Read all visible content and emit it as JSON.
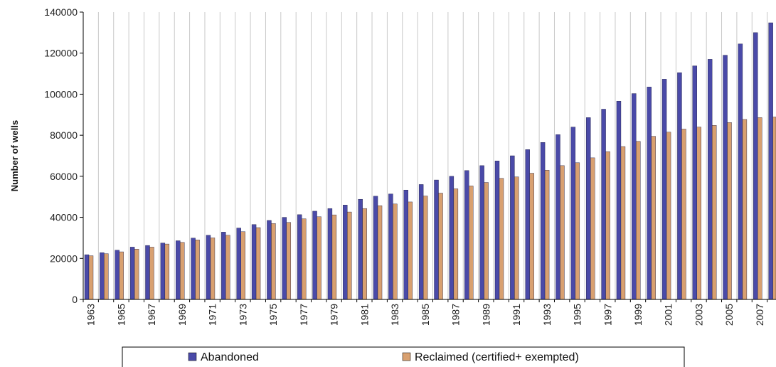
{
  "chart_data": {
    "type": "bar",
    "title": "",
    "xlabel": "",
    "ylabel": "Number of wells",
    "ylim": [
      0,
      140000
    ],
    "yticks": [
      0,
      20000,
      40000,
      60000,
      80000,
      100000,
      120000,
      140000
    ],
    "grid": "vertical",
    "legend_position": "bottom",
    "categories": [
      "1963",
      "1964",
      "1965",
      "1966",
      "1967",
      "1968",
      "1969",
      "1970",
      "1971",
      "1972",
      "1973",
      "1974",
      "1975",
      "1976",
      "1977",
      "1978",
      "1979",
      "1980",
      "1981",
      "1982",
      "1983",
      "1984",
      "1985",
      "1986",
      "1987",
      "1988",
      "1989",
      "1990",
      "1991",
      "1992",
      "1993",
      "1994",
      "1995",
      "1996",
      "1997",
      "1998",
      "1999",
      "2000",
      "2001",
      "2002",
      "2003",
      "2004",
      "2005",
      "2006",
      "2007",
      "2008"
    ],
    "xtick_labels": [
      "1963",
      "1965",
      "1967",
      "1969",
      "1971",
      "1973",
      "1975",
      "1977",
      "1979",
      "1981",
      "1983",
      "1985",
      "1987",
      "1989",
      "1991",
      "1993",
      "1995",
      "1997",
      "1999",
      "2001",
      "2003",
      "2005",
      "2007"
    ],
    "series": [
      {
        "name": "Abandoned",
        "color": "#4a4aa8",
        "values": [
          21800,
          22800,
          24000,
          25500,
          26300,
          27500,
          28600,
          29900,
          31300,
          32800,
          34800,
          36500,
          38500,
          40000,
          41300,
          43000,
          44300,
          46000,
          48800,
          50300,
          51400,
          53300,
          56000,
          58200,
          60000,
          62800,
          65200,
          67500,
          70000,
          73000,
          76500,
          80300,
          84000,
          88600,
          92700,
          96600,
          100300,
          103500,
          107300,
          110500,
          113800,
          117000,
          119000,
          124500,
          130000,
          134800
        ]
      },
      {
        "name": "Reclaimed (certified+ exempted)",
        "color": "#d8a070",
        "values": [
          21300,
          22300,
          23200,
          24500,
          25500,
          27000,
          27800,
          29000,
          30000,
          31300,
          33000,
          35000,
          37000,
          37500,
          39300,
          40300,
          41200,
          42600,
          44300,
          45700,
          46500,
          47500,
          50400,
          51800,
          53900,
          55300,
          57000,
          59000,
          59700,
          61500,
          63000,
          65200,
          66600,
          69000,
          72000,
          74500,
          77000,
          79500,
          81500,
          83000,
          84000,
          84800,
          86200,
          87700,
          88600,
          88900
        ]
      }
    ]
  }
}
